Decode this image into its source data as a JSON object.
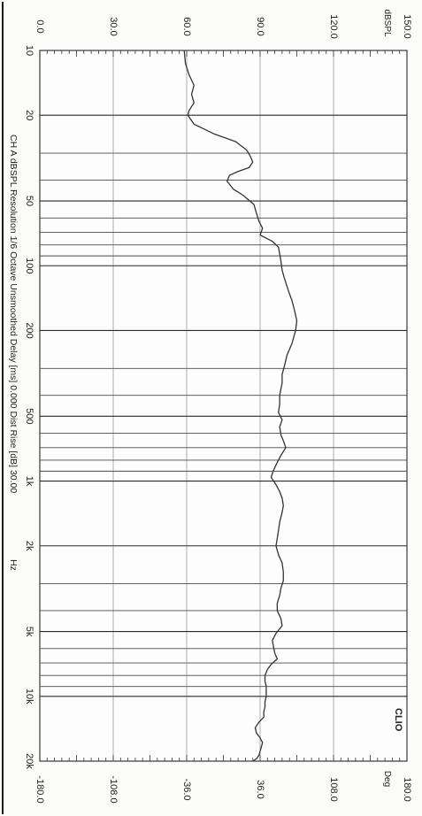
{
  "chart_data": {
    "type": "line",
    "orientation": "rotated-90-clockwise",
    "x_scale": "log",
    "x_label": "Hz",
    "x_ticks": [
      "10",
      "20",
      "50",
      "100",
      "200",
      "500",
      "1k",
      "2k",
      "5k",
      "10k",
      "20k"
    ],
    "xlim": [
      10,
      20000
    ],
    "y_left_label": "dBSPL",
    "y_left_ticks": [
      "0.0",
      "30.0",
      "60.0",
      "90.0",
      "120.0",
      "150.0"
    ],
    "ylim_left": [
      0,
      150
    ],
    "y_right_label": "Deg",
    "y_right_ticks": [
      "-180.0",
      "-108.0",
      "-36.0",
      "36.0",
      "108.0",
      "180.0"
    ],
    "ylim_right": [
      -180,
      180
    ],
    "brand": "CLIO",
    "caption": "CH A   dBSPL   Resolution 1/6 Octave   Unsmoothed   Delay [ms] 0.000   Dist Rise [dB] 30.00",
    "grid": true,
    "series": [
      {
        "color": "#333333",
        "x": [
          10,
          11.5,
          13,
          14.5,
          16,
          17.5,
          19,
          20,
          22,
          24.5,
          26.5,
          29,
          31,
          33,
          35,
          36.5,
          38,
          40.5,
          44,
          47,
          52,
          57,
          62,
          67,
          72,
          77,
          82,
          88,
          95,
          105,
          115,
          130,
          145,
          160,
          180,
          200,
          230,
          260,
          290,
          320,
          350,
          400,
          440,
          480,
          520,
          560,
          610,
          650,
          700,
          760,
          820,
          890,
          960,
          1040,
          1120,
          1200,
          1300,
          1400,
          1550,
          1700,
          1850,
          2000,
          2200,
          2400,
          2650,
          2900,
          3150,
          3400,
          3700,
          4000,
          4350,
          4700,
          5100,
          5500,
          5900,
          6300,
          6700,
          7100,
          7500,
          8000,
          8500,
          9000,
          9500,
          10000,
          10600,
          11200,
          11800,
          12500,
          13200,
          14000,
          14800,
          15600,
          16400,
          17200,
          18000,
          18800,
          19500,
          20000
        ],
        "values": [
          59.0,
          59.5,
          61.0,
          63.0,
          62.0,
          63.0,
          61.0,
          60.5,
          63.0,
          71.5,
          80.0,
          84.5,
          86.0,
          87.0,
          85.5,
          81.0,
          77.5,
          76.5,
          79.0,
          83.0,
          87.5,
          88.5,
          89.5,
          91.0,
          90.0,
          95.0,
          97.5,
          98.0,
          98.5,
          99.0,
          100.0,
          101.5,
          103.0,
          104.0,
          105.0,
          104.5,
          103.0,
          101.0,
          100.0,
          99.0,
          99.0,
          98.0,
          98.0,
          97.5,
          99.0,
          98.0,
          98.5,
          99.5,
          100.5,
          98.5,
          97.0,
          95.5,
          94.5,
          96.5,
          98.0,
          99.0,
          99.5,
          99.0,
          98.0,
          97.5,
          97.0,
          96.5,
          97.5,
          99.0,
          99.5,
          99.5,
          98.5,
          98.0,
          97.0,
          97.0,
          98.5,
          99.0,
          96.5,
          95.0,
          95.5,
          96.0,
          97.0,
          94.5,
          93.0,
          92.0,
          92.0,
          92.5,
          92.5,
          92.5,
          92.0,
          92.0,
          91.5,
          91.5,
          89.5,
          88.0,
          88.5,
          90.0,
          91.0,
          90.5,
          90.0,
          89.5,
          88.5,
          87.0
        ]
      }
    ]
  }
}
